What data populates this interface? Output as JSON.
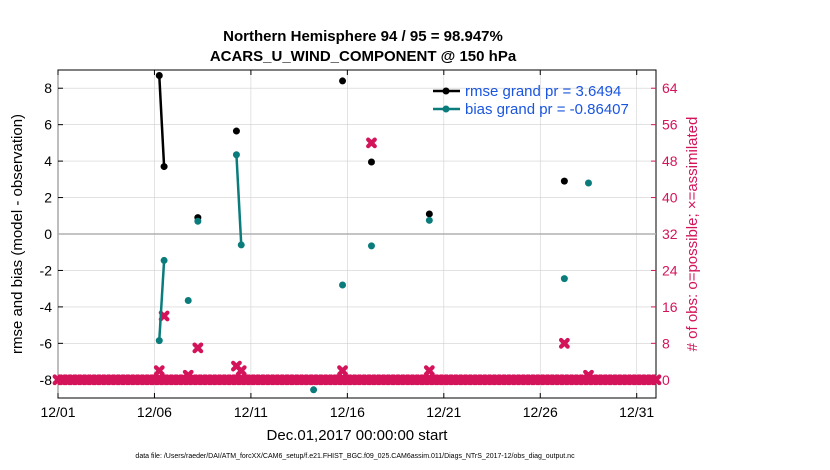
{
  "chart_data": {
    "type": "scatter",
    "title_line1": "Northern Hemisphere 94 / 95 = 98.947%",
    "title_line2": "ACARS_U_WIND_COMPONENT @ 150 hPa",
    "xlabel": "Dec.01,2017 00:00:00 start",
    "ylabel_left": "rmse and bias (model - observation)",
    "ylabel_right": "# of obs: o=possible; ×=assimilated",
    "footer": "data file: /Users/raeder/DAI/ATM_forcXX/CAM6_setup/f.e21.FHIST_BGC.f09_025.CAM6assim.011/Diags_NTrS_2017-12/obs_diag_output.nc",
    "xlim": [
      0,
      31
    ],
    "ylim_left": [
      -9,
      9
    ],
    "ylim_right": [
      -4,
      68
    ],
    "xticks": [
      0,
      5,
      10,
      15,
      20,
      25,
      30
    ],
    "xtick_labels": [
      "12/01",
      "12/06",
      "12/11",
      "12/16",
      "12/21",
      "12/26",
      "12/31"
    ],
    "yticks_left": [
      -8,
      -6,
      -4,
      -2,
      0,
      2,
      4,
      6,
      8
    ],
    "ytick_labels_left": [
      "-8",
      "-6",
      "-4",
      "-2",
      "0",
      "2",
      "4",
      "6",
      "8"
    ],
    "yticks_right": [
      0,
      8,
      16,
      24,
      32,
      40,
      48,
      56,
      64
    ],
    "ytick_labels_right": [
      "0",
      "8",
      "16",
      "24",
      "32",
      "40",
      "48",
      "56",
      "64"
    ],
    "colors": {
      "rmse": "#000000",
      "bias": "#0b7c7c",
      "obs": "#d4145a",
      "legend_text": "#1a55e0",
      "zero_line": "#b0b0b0"
    },
    "series": [
      {
        "name": "rmse grand pr = 3.6494",
        "values": [
          [
            5.25,
            8.7
          ],
          [
            5.5,
            3.7
          ],
          [
            7.25,
            0.9
          ],
          [
            9.25,
            5.65
          ],
          [
            14.75,
            8.4
          ],
          [
            16.25,
            3.95
          ],
          [
            19.25,
            1.1
          ],
          [
            26.25,
            2.9
          ]
        ],
        "segments": [
          [
            [
              5.25,
              8.7
            ],
            [
              5.5,
              3.7
            ]
          ]
        ]
      },
      {
        "name": "bias grand pr = -0.86407",
        "values": [
          [
            5.25,
            -5.85
          ],
          [
            5.5,
            -1.45
          ],
          [
            6.75,
            -3.65
          ],
          [
            7.25,
            0.7
          ],
          [
            9.25,
            4.35
          ],
          [
            9.5,
            -0.6
          ],
          [
            13.25,
            -8.55
          ],
          [
            14.75,
            -2.8
          ],
          [
            16.25,
            -0.65
          ],
          [
            19.25,
            0.75
          ],
          [
            26.25,
            -2.45
          ],
          [
            27.5,
            2.8
          ]
        ],
        "segments": [
          [
            [
              5.25,
              -5.85
            ],
            [
              5.5,
              -1.45
            ]
          ],
          [
            [
              9.25,
              4.35
            ],
            [
              9.5,
              -0.6
            ]
          ]
        ]
      },
      {
        "name": "obs count",
        "values": [
          [
            5.25,
            2
          ],
          [
            5.5,
            14
          ],
          [
            6.75,
            1
          ],
          [
            7.25,
            7
          ],
          [
            9.25,
            3
          ],
          [
            9.5,
            2
          ],
          [
            14.75,
            2
          ],
          [
            16.25,
            52
          ],
          [
            19.25,
            2
          ],
          [
            26.25,
            8
          ],
          [
            27.5,
            1
          ]
        ]
      }
    ]
  }
}
